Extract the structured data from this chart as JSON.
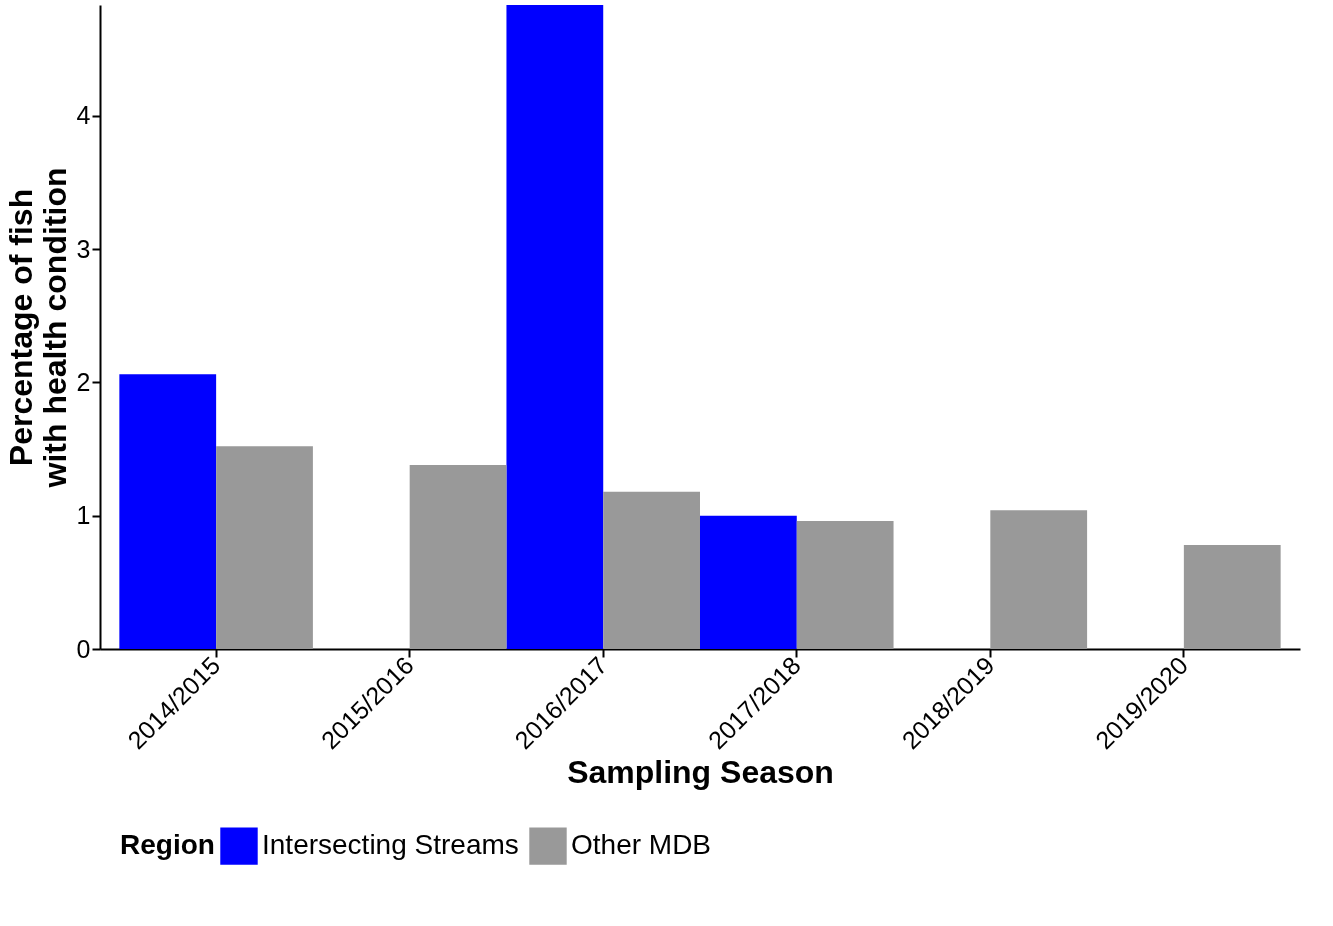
{
  "chart_data": {
    "type": "bar",
    "xlabel": "Sampling Season",
    "ylabel": "Percentage of fish\nwith health condition",
    "legend_title": "Region",
    "categories": [
      "2014/2015",
      "2015/2016",
      "2016/2017",
      "2017/2018",
      "2018/2019",
      "2019/2020"
    ],
    "series": [
      {
        "name": "Intersecting Streams",
        "color": "#0000ff",
        "values": [
          2.06,
          null,
          4.83,
          1.0,
          null,
          null
        ]
      },
      {
        "name": "Other MDB",
        "color": "#999999",
        "values": [
          1.52,
          1.38,
          1.18,
          0.96,
          1.04,
          0.78
        ]
      }
    ],
    "ylim": [
      0,
      4.83
    ],
    "yticks": [
      0,
      1,
      2,
      3,
      4
    ],
    "grid": false,
    "legend": "bottom"
  }
}
